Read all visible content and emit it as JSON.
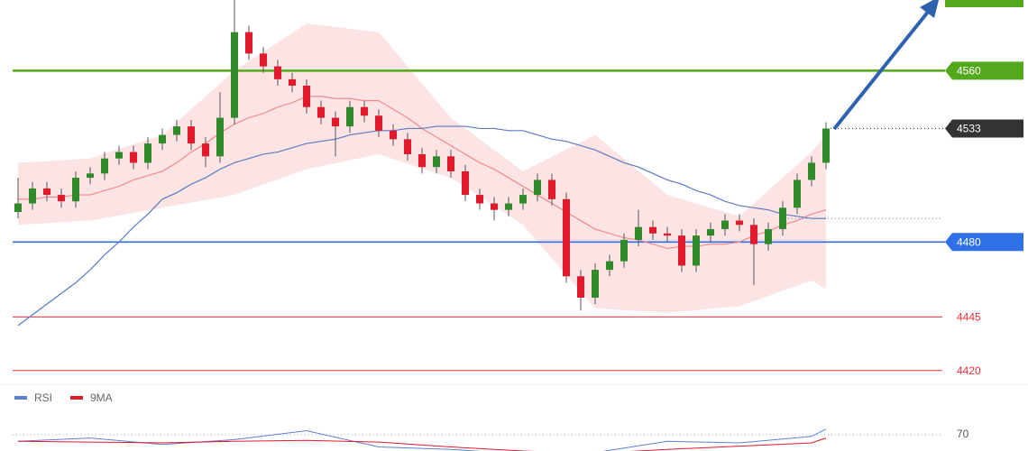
{
  "chart_data": {
    "type": "candlestick",
    "open": [
      4494,
      4498,
      4505,
      4502,
      4499,
      4510,
      4512,
      4519,
      4522,
      4517,
      4526,
      4530,
      4534,
      4526,
      4520,
      4538,
      4578,
      4568,
      4562,
      4556,
      4553,
      4543,
      4538,
      4534,
      4543,
      4539,
      4532,
      4528,
      4521,
      4515,
      4520,
      4513,
      4502,
      4498,
      4495,
      4498,
      4502,
      4509,
      4500,
      4464,
      4454,
      4467,
      4471,
      4481,
      4487,
      4484,
      4483,
      4469,
      4483,
      4486,
      4490,
      4488,
      4479,
      4486,
      4496,
      4509,
      4517
    ],
    "high": [
      4510,
      4508,
      4508,
      4505,
      4513,
      4515,
      4522,
      4525,
      4525,
      4529,
      4533,
      4537,
      4537,
      4529,
      4550,
      4593,
      4581,
      4571,
      4565,
      4559,
      4556,
      4546,
      4541,
      4546,
      4546,
      4542,
      4535,
      4531,
      4524,
      4523,
      4523,
      4516,
      4505,
      4501,
      4501,
      4505,
      4512,
      4512,
      4503,
      4467,
      4470,
      4474,
      4484,
      4495,
      4490,
      4487,
      4486,
      4486,
      4489,
      4493,
      4493,
      4491,
      4489,
      4499,
      4512,
      4520,
      4536
    ],
    "low": [
      4491,
      4495,
      4499,
      4496,
      4496,
      4507,
      4509,
      4516,
      4514,
      4514,
      4523,
      4527,
      4523,
      4515,
      4517,
      4535,
      4565,
      4559,
      4553,
      4550,
      4540,
      4535,
      4520,
      4531,
      4536,
      4529,
      4525,
      4518,
      4512,
      4512,
      4510,
      4499,
      4495,
      4490,
      4492,
      4495,
      4499,
      4497,
      4461,
      4448,
      4451,
      4464,
      4468,
      4478,
      4481,
      4480,
      4466,
      4466,
      4480,
      4483,
      4485,
      4460,
      4476,
      4483,
      4493,
      4506,
      4514
    ],
    "close": [
      4498,
      4505,
      4502,
      4499,
      4510,
      4512,
      4519,
      4522,
      4517,
      4526,
      4530,
      4534,
      4526,
      4520,
      4538,
      4578,
      4568,
      4562,
      4556,
      4553,
      4543,
      4538,
      4534,
      4543,
      4539,
      4532,
      4528,
      4521,
      4515,
      4520,
      4513,
      4502,
      4498,
      4495,
      4498,
      4502,
      4509,
      4500,
      4464,
      4454,
      4467,
      4471,
      4481,
      4487,
      4484,
      4483,
      4469,
      4483,
      4486,
      4490,
      4488,
      4479,
      4486,
      4496,
      4509,
      4517,
      4533
    ],
    "up_color": "#2f8a2a",
    "down_color": "#e0192c",
    "ma_fast": [
      4500,
      4500,
      4501,
      4501,
      4502,
      4502,
      4504,
      4506,
      4509,
      4511,
      4513,
      4517,
      4522,
      4526,
      4531,
      4535,
      4538,
      4540,
      4543,
      4545,
      4548,
      4548,
      4547,
      4547,
      4546,
      4546,
      4542,
      4538,
      4533,
      4529,
      4525,
      4521,
      4517,
      4514,
      4510,
      4506,
      4502,
      4498,
      4494,
      4490,
      4486,
      4484,
      4482,
      4481,
      4479,
      4477,
      4478,
      4478,
      4479,
      4479,
      4480,
      4483,
      4485,
      4488,
      4490,
      4493,
      4495
    ],
    "ma_fast_color": "#f08a8a",
    "ma_slow": [
      4441,
      4446,
      4451,
      4456,
      4461,
      4467,
      4474,
      4480,
      4487,
      4493,
      4500,
      4503,
      4507,
      4510,
      4514,
      4517,
      4519,
      4521,
      4522,
      4524,
      4526,
      4527,
      4528,
      4530,
      4531,
      4532,
      4532,
      4533,
      4533,
      4534,
      4534,
      4534,
      4533,
      4533,
      4532,
      4532,
      4530,
      4528,
      4527,
      4525,
      4523,
      4520,
      4517,
      4515,
      4512,
      4509,
      4507,
      4504,
      4502,
      4499,
      4497,
      4496,
      4495,
      4493,
      4492,
      4491,
      4491
    ],
    "ma_slow_color": "#5b7bbf",
    "bands": {
      "index": [
        0,
        5,
        10,
        15,
        20,
        25,
        30,
        35,
        40,
        45,
        50,
        55,
        56
      ],
      "upper": [
        4517,
        4519,
        4530,
        4560,
        4582,
        4578,
        4538,
        4513,
        4530,
        4502,
        4492,
        4522,
        4530
      ],
      "lower": [
        4488,
        4490,
        4496,
        4502,
        4514,
        4521,
        4510,
        4488,
        4449,
        4447,
        4450,
        4462,
        4458
      ],
      "color": "#fbd9db"
    },
    "ylim": [
      4414,
      4593
    ],
    "levels": [
      {
        "value": 4560,
        "color": "#54a81c",
        "style": "tag"
      },
      {
        "value": 4480,
        "color": "#2f6fe8",
        "style": "tag"
      },
      {
        "value": 4445,
        "color": "#e8303a",
        "style": "text"
      },
      {
        "value": 4420,
        "color": "#e8303a",
        "style": "text"
      }
    ],
    "rsi": {
      "legend": [
        {
          "name": "RSI",
          "color": "#5b7fd6"
        },
        {
          "name": "9MA",
          "color": "#e0192c"
        }
      ],
      "index": [
        0,
        5,
        10,
        15,
        20,
        25,
        30,
        35,
        40,
        45,
        50,
        55,
        56
      ],
      "rsi": [
        62,
        66,
        58,
        64,
        75,
        55,
        52,
        46,
        48,
        62,
        60,
        68,
        77
      ],
      "ma9": [
        62,
        61,
        60,
        62,
        63,
        61,
        55,
        50,
        47,
        52,
        56,
        60,
        66
      ],
      "ylim": [
        0,
        100
      ],
      "yticks": [
        70
      ]
    }
  }
}
